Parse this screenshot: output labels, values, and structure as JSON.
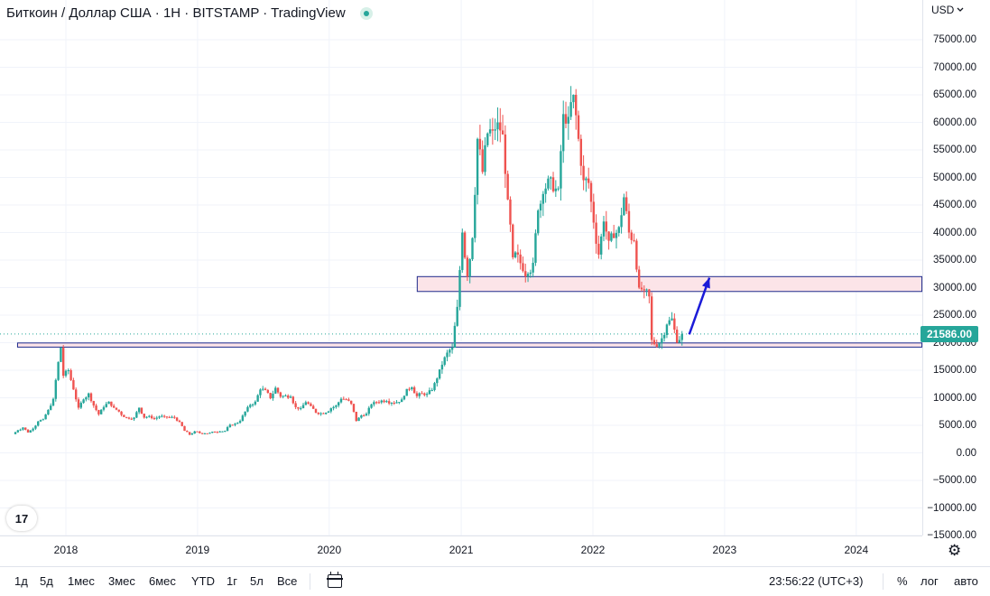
{
  "header": {
    "symbol_title": "Биткоин / Доллар США · 1Н · BITSTAMP · TradingView",
    "currency": "USD",
    "currency_chevron_icon": "chevron-down-icon",
    "status_icon": "market-open-dot-icon"
  },
  "colors": {
    "up": "#26a69a",
    "down": "#ef5350",
    "zone_border": "#1e2a8c",
    "zone_fill": "#fce4e8",
    "arrow": "#1b1bd8",
    "price_line": "#26a69a",
    "axis_border": "#e0e3eb"
  },
  "chart_data": {
    "type": "candlestick",
    "symbol": "BTCUSD",
    "exchange": "BITSTAMP",
    "interval": "1Н",
    "ylim": [
      -15000,
      78000
    ],
    "y_ticks": [
      75000,
      70000,
      65000,
      60000,
      55000,
      50000,
      45000,
      40000,
      35000,
      30000,
      25000,
      20000,
      15000,
      10000,
      5000,
      0,
      -5000,
      -10000,
      -15000
    ],
    "y_tick_labels": [
      "75000.00",
      "70000.00",
      "65000.00",
      "60000.00",
      "55000.00",
      "50000.00",
      "45000.00",
      "40000.00",
      "35000.00",
      "30000.00",
      "25000.00",
      "20000.00",
      "15000.00",
      "10000.00",
      "5000.00",
      "0.00",
      "−5000.00",
      "−10000.00",
      "−15000.00"
    ],
    "x_range": [
      "2017-08-01",
      "2024-07-01"
    ],
    "x_ticks": [
      "2018-01-01",
      "2019-01-01",
      "2020-01-01",
      "2021-01-01",
      "2022-01-01",
      "2023-01-01",
      "2024-01-01"
    ],
    "x_tick_labels": [
      "2018",
      "2019",
      "2020",
      "2021",
      "2022",
      "2023",
      "2024"
    ],
    "last_price": 21586.0,
    "last_price_label": "21586.00",
    "weekly_closes": [
      [
        "2017-08-07",
        3400
      ],
      [
        "2017-08-21",
        4100
      ],
      [
        "2017-09-04",
        4600
      ],
      [
        "2017-09-18",
        3700
      ],
      [
        "2017-10-02",
        4400
      ],
      [
        "2017-10-16",
        5700
      ],
      [
        "2017-10-30",
        6100
      ],
      [
        "2017-11-13",
        7800
      ],
      [
        "2017-11-27",
        9800
      ],
      [
        "2017-12-11",
        16500
      ],
      [
        "2017-12-18",
        19100
      ],
      [
        "2017-12-25",
        14000
      ],
      [
        "2018-01-08",
        15000
      ],
      [
        "2018-01-22",
        11500
      ],
      [
        "2018-02-05",
        8200
      ],
      [
        "2018-02-19",
        9700
      ],
      [
        "2018-03-05",
        10800
      ],
      [
        "2018-03-19",
        8600
      ],
      [
        "2018-04-02",
        7000
      ],
      [
        "2018-04-16",
        8300
      ],
      [
        "2018-04-30",
        9300
      ],
      [
        "2018-05-14",
        8200
      ],
      [
        "2018-05-28",
        7500
      ],
      [
        "2018-06-11",
        6500
      ],
      [
        "2018-06-25",
        6200
      ],
      [
        "2018-07-09",
        6400
      ],
      [
        "2018-07-23",
        8200
      ],
      [
        "2018-08-06",
        6400
      ],
      [
        "2018-08-20",
        6700
      ],
      [
        "2018-09-03",
        6200
      ],
      [
        "2018-09-17",
        6600
      ],
      [
        "2018-10-01",
        6600
      ],
      [
        "2018-10-15",
        6450
      ],
      [
        "2018-10-29",
        6400
      ],
      [
        "2018-11-12",
        5600
      ],
      [
        "2018-11-26",
        4000
      ],
      [
        "2018-12-10",
        3300
      ],
      [
        "2018-12-24",
        3900
      ],
      [
        "2019-01-07",
        3600
      ],
      [
        "2019-01-21",
        3550
      ],
      [
        "2019-02-04",
        3650
      ],
      [
        "2019-02-18",
        3800
      ],
      [
        "2019-03-04",
        3900
      ],
      [
        "2019-03-18",
        4000
      ],
      [
        "2019-04-01",
        5100
      ],
      [
        "2019-04-15",
        5300
      ],
      [
        "2019-04-29",
        5800
      ],
      [
        "2019-05-13",
        7500
      ],
      [
        "2019-05-27",
        8700
      ],
      [
        "2019-06-10",
        9300
      ],
      [
        "2019-06-24",
        11500
      ],
      [
        "2019-07-08",
        11400
      ],
      [
        "2019-07-22",
        9900
      ],
      [
        "2019-08-05",
        11800
      ],
      [
        "2019-08-19",
        10200
      ],
      [
        "2019-09-02",
        10400
      ],
      [
        "2019-09-16",
        10200
      ],
      [
        "2019-09-30",
        8300
      ],
      [
        "2019-10-14",
        8100
      ],
      [
        "2019-10-28",
        9200
      ],
      [
        "2019-11-11",
        8500
      ],
      [
        "2019-11-25",
        7300
      ],
      [
        "2019-12-09",
        7200
      ],
      [
        "2019-12-23",
        7300
      ],
      [
        "2020-01-06",
        8100
      ],
      [
        "2020-01-20",
        8600
      ],
      [
        "2020-02-03",
        9800
      ],
      [
        "2020-02-17",
        9700
      ],
      [
        "2020-03-02",
        8900
      ],
      [
        "2020-03-16",
        5800
      ],
      [
        "2020-03-30",
        6800
      ],
      [
        "2020-04-13",
        7100
      ],
      [
        "2020-04-27",
        8800
      ],
      [
        "2020-05-11",
        9200
      ],
      [
        "2020-05-25",
        9500
      ],
      [
        "2020-06-08",
        9400
      ],
      [
        "2020-06-22",
        9100
      ],
      [
        "2020-07-06",
        9200
      ],
      [
        "2020-07-20",
        9700
      ],
      [
        "2020-08-03",
        11600
      ],
      [
        "2020-08-17",
        11900
      ],
      [
        "2020-08-31",
        10300
      ],
      [
        "2020-09-14",
        10800
      ],
      [
        "2020-09-28",
        10700
      ],
      [
        "2020-10-12",
        11400
      ],
      [
        "2020-10-26",
        13500
      ],
      [
        "2020-11-09",
        16000
      ],
      [
        "2020-11-23",
        18200
      ],
      [
        "2020-12-07",
        19100
      ],
      [
        "2020-12-21",
        26500
      ],
      [
        "2021-01-04",
        40000
      ],
      [
        "2021-01-18",
        32000
      ],
      [
        "2021-02-01",
        39000
      ],
      [
        "2021-02-15",
        57000
      ],
      [
        "2021-03-01",
        51000
      ],
      [
        "2021-03-15",
        58000
      ],
      [
        "2021-03-29",
        58500
      ],
      [
        "2021-04-12",
        60000
      ],
      [
        "2021-04-26",
        57800
      ],
      [
        "2021-05-10",
        46000
      ],
      [
        "2021-05-24",
        35500
      ],
      [
        "2021-06-07",
        36000
      ],
      [
        "2021-06-21",
        33000
      ],
      [
        "2021-07-05",
        32500
      ],
      [
        "2021-07-19",
        34500
      ],
      [
        "2021-08-02",
        44000
      ],
      [
        "2021-08-16",
        47000
      ],
      [
        "2021-08-30",
        49800
      ],
      [
        "2021-09-13",
        47500
      ],
      [
        "2021-09-27",
        48000
      ],
      [
        "2021-10-11",
        61500
      ],
      [
        "2021-10-25",
        61000
      ],
      [
        "2021-11-08",
        65000
      ],
      [
        "2021-11-22",
        57000
      ],
      [
        "2021-12-06",
        49500
      ],
      [
        "2021-12-20",
        49000
      ],
      [
        "2022-01-03",
        41800
      ],
      [
        "2022-01-17",
        36000
      ],
      [
        "2022-01-31",
        42000
      ],
      [
        "2022-02-14",
        38500
      ],
      [
        "2022-02-28",
        39000
      ],
      [
        "2022-03-14",
        41000
      ],
      [
        "2022-03-28",
        46400
      ],
      [
        "2022-04-11",
        40000
      ],
      [
        "2022-04-25",
        38500
      ],
      [
        "2022-05-09",
        30000
      ],
      [
        "2022-05-23",
        29500
      ],
      [
        "2022-06-06",
        28400
      ],
      [
        "2022-06-13",
        20500
      ],
      [
        "2022-06-27",
        19300
      ],
      [
        "2022-07-11",
        20800
      ],
      [
        "2022-07-25",
        23300
      ],
      [
        "2022-08-08",
        24400
      ],
      [
        "2022-08-22",
        20000
      ],
      [
        "2022-09-05",
        21586
      ]
    ],
    "annotations": [
      {
        "type": "rectangle",
        "price_from": 29300,
        "price_to": 32000,
        "time_from": "2020-09-01",
        "time_to": "2024-07-01"
      },
      {
        "type": "rectangle",
        "price_from": 19200,
        "price_to": 19950,
        "time_from": "2017-08-20",
        "time_to": "2024-07-01"
      },
      {
        "type": "arrow",
        "from": [
          "2022-09-25",
          21500
        ],
        "to": [
          "2022-11-20",
          31800
        ]
      },
      {
        "type": "price_line",
        "price": 21586
      }
    ]
  },
  "bottom_bar": {
    "ranges": [
      "1д",
      "5д",
      "1мес",
      "3мес",
      "6мес",
      "YTD",
      "1г",
      "5л",
      "Все"
    ],
    "calendar_icon": "calendar-icon",
    "clock": "23:56:22 (UTC+3)",
    "percent": "%",
    "log": "лог",
    "auto": "авто"
  },
  "logo_text": "17",
  "settings_icon": "gear-icon"
}
